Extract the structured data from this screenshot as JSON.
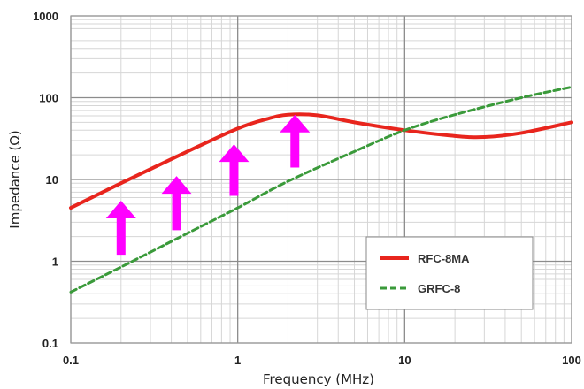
{
  "chart_data": {
    "type": "line",
    "title": "",
    "xlabel": "Frequency (MHz)",
    "ylabel": "Impedance (Ω)",
    "x_scale": "log",
    "y_scale": "log",
    "xlim": [
      0.1,
      100
    ],
    "ylim": [
      0.1,
      1000
    ],
    "x_ticks": [
      "0.1",
      "1",
      "10",
      "100"
    ],
    "y_ticks": [
      "0.1",
      "1",
      "10",
      "100",
      "1000"
    ],
    "grid": true,
    "legend_position": "bottom-right",
    "series": [
      {
        "name": "RFC-8MA",
        "color": "#e8251d",
        "style": "solid",
        "x": [
          0.1,
          0.2,
          0.5,
          1,
          1.5,
          2,
          3,
          5,
          10,
          20,
          30,
          50,
          100
        ],
        "y": [
          4.5,
          9,
          22,
          42,
          55,
          62,
          61,
          50,
          40,
          34,
          33,
          37,
          50
        ]
      },
      {
        "name": "GRFC-8",
        "color": "#3a9a3a",
        "style": "dashed",
        "x": [
          0.1,
          0.2,
          0.5,
          1,
          2,
          5,
          10,
          20,
          50,
          100
        ],
        "y": [
          0.42,
          0.85,
          2.2,
          4.5,
          9.5,
          22,
          40,
          62,
          100,
          135
        ]
      }
    ],
    "annotations": [
      {
        "type": "arrow",
        "direction": "up",
        "color": "#ff00ff",
        "x": 0.2,
        "y_from": 1.2,
        "y_to": 5.5
      },
      {
        "type": "arrow",
        "direction": "up",
        "color": "#ff00ff",
        "x": 0.43,
        "y_from": 2.4,
        "y_to": 11
      },
      {
        "type": "arrow",
        "direction": "up",
        "color": "#ff00ff",
        "x": 0.95,
        "y_from": 6.3,
        "y_to": 27
      },
      {
        "type": "arrow",
        "direction": "up",
        "color": "#ff00ff",
        "x": 2.2,
        "y_from": 14,
        "y_to": 62
      }
    ]
  }
}
